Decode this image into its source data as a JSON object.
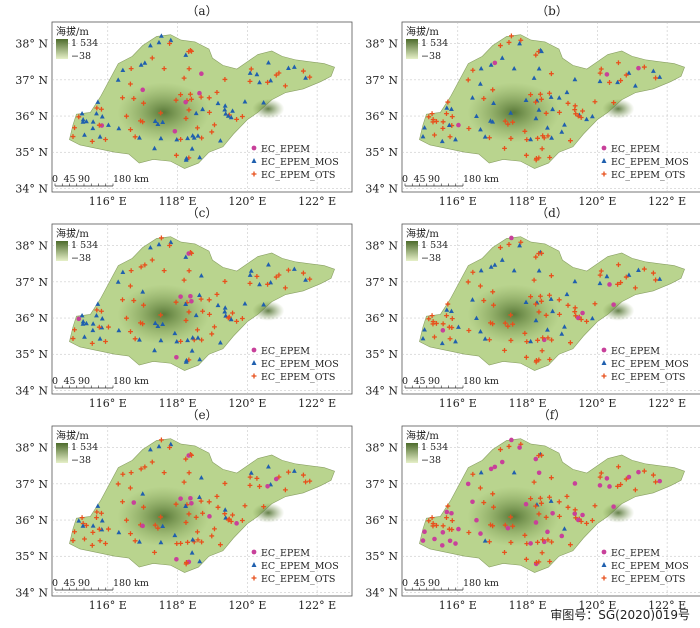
{
  "panels": [
    {
      "label": "（a）"
    },
    {
      "label": "（b）"
    },
    {
      "label": "（c）"
    },
    {
      "label": "（d）"
    },
    {
      "label": "（e）"
    },
    {
      "label": "（f）"
    }
  ],
  "elevation_legend": {
    "title": "海拔/m",
    "max": "1 534",
    "min": "−38"
  },
  "station_legend": [
    {
      "name": "EC_EPEM",
      "color": "#c8409a",
      "marker": "circle"
    },
    {
      "name": "EC_EPEM_MOS",
      "color": "#1f5fae",
      "marker": "triangle"
    },
    {
      "name": "EC_EPEM_OTS",
      "color": "#e8501c",
      "marker": "plus"
    }
  ],
  "y_ticks": [
    "38° N",
    "37° N",
    "36° N",
    "35° N",
    "34° N"
  ],
  "x_ticks": [
    "116° E",
    "118° E",
    "120° E",
    "122° E"
  ],
  "scale_bar": {
    "ticks": [
      "0",
      "45",
      "90",
      "180 km"
    ]
  },
  "approval_number": "审图号：SG(2020)019号",
  "colors": {
    "land": "#b9d48e",
    "land_dark": "#5f7f3a",
    "grid": "#bdbdbd",
    "frame": "#555555"
  }
}
